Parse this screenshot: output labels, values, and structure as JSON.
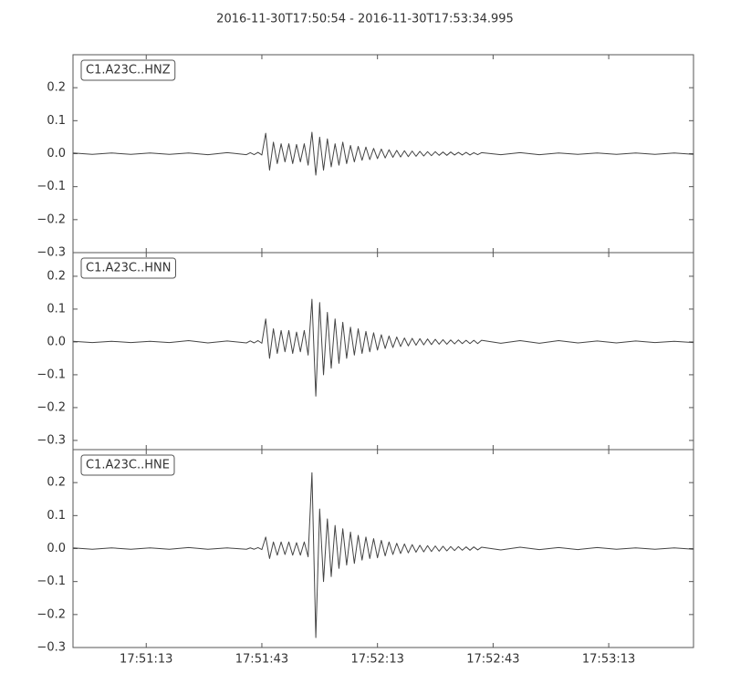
{
  "chart_data": [
    {
      "type": "line",
      "title": "2016-11-30T17:50:54  -  2016-11-30T17:53:34.995",
      "x": [
        64254,
        64259,
        64264,
        64269,
        64274,
        64279,
        64284,
        64289,
        64294,
        64299,
        64300,
        64301,
        64302,
        64303,
        64304,
        64305,
        64306,
        64307,
        64308,
        64309,
        64310,
        64311,
        64312,
        64313,
        64314,
        64315,
        64316,
        64317,
        64318,
        64319,
        64320,
        64321,
        64322,
        64323,
        64324,
        64325,
        64326,
        64327,
        64328,
        64329,
        64330,
        64331,
        64332,
        64333,
        64334,
        64335,
        64336,
        64337,
        64338,
        64339,
        64340,
        64341,
        64342,
        64343,
        64344,
        64345,
        64346,
        64347,
        64348,
        64349,
        64350,
        64351,
        64352,
        64353,
        64354,
        64355,
        64356,
        64357,
        64358,
        64359,
        64360,
        64365,
        64370,
        64375,
        64380,
        64385,
        64390,
        64395,
        64400,
        64405,
        64410,
        64414.995
      ],
      "series": [
        {
          "name": "C1.A23C..HNZ",
          "color": "#444444",
          "values": [
            0.002,
            -0.002,
            0.002,
            -0.002,
            0.002,
            -0.002,
            0.002,
            -0.003,
            0.003,
            -0.003,
            0.003,
            -0.003,
            0.004,
            -0.004,
            0.062,
            -0.05,
            0.035,
            -0.03,
            0.03,
            -0.025,
            0.03,
            -0.03,
            0.028,
            -0.025,
            0.03,
            -0.035,
            0.065,
            -0.065,
            0.05,
            -0.05,
            0.045,
            -0.04,
            0.03,
            -0.035,
            0.035,
            -0.03,
            0.025,
            -0.025,
            0.022,
            -0.02,
            0.02,
            -0.018,
            0.016,
            -0.015,
            0.014,
            -0.013,
            0.012,
            -0.011,
            0.01,
            -0.01,
            0.009,
            -0.009,
            0.008,
            -0.008,
            0.007,
            -0.007,
            0.006,
            -0.006,
            0.006,
            -0.005,
            0.005,
            -0.005,
            0.005,
            -0.004,
            0.004,
            -0.004,
            0.004,
            -0.004,
            0.003,
            -0.003,
            0.003,
            -0.003,
            0.003,
            -0.003,
            0.002,
            -0.002,
            0.002,
            -0.002,
            0.002,
            -0.002,
            0.002,
            -0.002
          ]
        }
      ],
      "xlim": [
        64254,
        64414.995
      ],
      "ylim": [
        -0.3,
        0.3
      ],
      "yticks": [
        {
          "value": -0.3,
          "label": "−0.3"
        },
        {
          "value": -0.2,
          "label": "−0.2"
        },
        {
          "value": -0.1,
          "label": "−0.1"
        },
        {
          "value": 0.0,
          "label": "0.0"
        },
        0.1,
        0.2
      ]
    },
    {
      "type": "line",
      "x": [
        64254,
        64259,
        64264,
        64269,
        64274,
        64279,
        64284,
        64289,
        64294,
        64299,
        64300,
        64301,
        64302,
        64303,
        64304,
        64305,
        64306,
        64307,
        64308,
        64309,
        64310,
        64311,
        64312,
        64313,
        64314,
        64315,
        64316,
        64317,
        64318,
        64319,
        64320,
        64321,
        64322,
        64323,
        64324,
        64325,
        64326,
        64327,
        64328,
        64329,
        64330,
        64331,
        64332,
        64333,
        64334,
        64335,
        64336,
        64337,
        64338,
        64339,
        64340,
        64341,
        64342,
        64343,
        64344,
        64345,
        64346,
        64347,
        64348,
        64349,
        64350,
        64351,
        64352,
        64353,
        64354,
        64355,
        64356,
        64357,
        64358,
        64359,
        64360,
        64365,
        64370,
        64375,
        64380,
        64385,
        64390,
        64395,
        64400,
        64405,
        64410,
        64414.995
      ],
      "series": [
        {
          "name": "C1.A23C..HNN",
          "color": "#444444",
          "values": [
            0.002,
            -0.002,
            0.002,
            -0.002,
            0.002,
            -0.002,
            0.004,
            -0.003,
            0.003,
            -0.003,
            0.003,
            -0.003,
            0.004,
            -0.004,
            0.07,
            -0.05,
            0.04,
            -0.035,
            0.035,
            -0.03,
            0.035,
            -0.035,
            0.03,
            -0.03,
            0.035,
            -0.04,
            0.13,
            -0.165,
            0.12,
            -0.1,
            0.09,
            -0.08,
            0.07,
            -0.065,
            0.06,
            -0.05,
            0.045,
            -0.04,
            0.04,
            -0.035,
            0.032,
            -0.03,
            0.028,
            -0.025,
            0.022,
            -0.02,
            0.018,
            -0.017,
            0.015,
            -0.014,
            0.012,
            -0.012,
            0.011,
            -0.01,
            0.01,
            -0.009,
            0.009,
            -0.008,
            0.008,
            -0.007,
            0.007,
            -0.007,
            0.006,
            -0.006,
            0.006,
            -0.005,
            0.005,
            -0.005,
            0.005,
            -0.005,
            0.005,
            -0.004,
            0.004,
            -0.004,
            0.004,
            -0.003,
            0.003,
            -0.003,
            0.003,
            -0.002,
            0.002,
            -0.002
          ]
        }
      ],
      "xlim": [
        64254,
        64414.995
      ],
      "ylim": [
        -0.328,
        0.272
      ],
      "yticks": [
        {
          "value": -0.3,
          "label": "−0.3"
        },
        {
          "value": -0.2,
          "label": "−0.2"
        },
        {
          "value": -0.1,
          "label": "−0.1"
        },
        {
          "value": 0.0,
          "label": "0.0"
        },
        0.1,
        0.2
      ]
    },
    {
      "type": "line",
      "x": [
        64254,
        64259,
        64264,
        64269,
        64274,
        64279,
        64284,
        64289,
        64294,
        64299,
        64300,
        64301,
        64302,
        64303,
        64304,
        64305,
        64306,
        64307,
        64308,
        64309,
        64310,
        64311,
        64312,
        64313,
        64314,
        64315,
        64316,
        64317,
        64318,
        64319,
        64320,
        64321,
        64322,
        64323,
        64324,
        64325,
        64326,
        64327,
        64328,
        64329,
        64330,
        64331,
        64332,
        64333,
        64334,
        64335,
        64336,
        64337,
        64338,
        64339,
        64340,
        64341,
        64342,
        64343,
        64344,
        64345,
        64346,
        64347,
        64348,
        64349,
        64350,
        64351,
        64352,
        64353,
        64354,
        64355,
        64356,
        64357,
        64358,
        64359,
        64360,
        64365,
        64370,
        64375,
        64380,
        64385,
        64390,
        64395,
        64400,
        64405,
        64410,
        64414.995
      ],
      "series": [
        {
          "name": "C1.A23C..HNE",
          "color": "#444444",
          "values": [
            0.002,
            -0.002,
            0.002,
            -0.002,
            0.002,
            -0.002,
            0.003,
            -0.002,
            0.002,
            -0.002,
            0.002,
            -0.002,
            0.003,
            -0.003,
            0.035,
            -0.03,
            0.02,
            -0.02,
            0.02,
            -0.018,
            0.02,
            -0.02,
            0.018,
            -0.02,
            0.02,
            -0.025,
            0.23,
            -0.27,
            0.12,
            -0.1,
            0.09,
            -0.085,
            0.07,
            -0.06,
            0.06,
            -0.05,
            0.05,
            -0.045,
            0.04,
            -0.035,
            0.035,
            -0.03,
            0.03,
            -0.028,
            0.025,
            -0.022,
            0.02,
            -0.018,
            0.016,
            -0.015,
            0.014,
            -0.013,
            0.012,
            -0.011,
            0.01,
            -0.01,
            0.009,
            -0.009,
            0.008,
            -0.008,
            0.007,
            -0.007,
            0.006,
            -0.006,
            0.006,
            -0.005,
            0.005,
            -0.005,
            0.005,
            -0.004,
            0.004,
            -0.004,
            0.004,
            -0.003,
            0.003,
            -0.003,
            0.003,
            -0.002,
            0.002,
            -0.002,
            0.002,
            -0.002
          ]
        }
      ],
      "xlim": [
        64254,
        64414.995
      ],
      "ylim": [
        -0.3,
        0.3
      ],
      "yticks": [
        {
          "value": -0.3,
          "label": "−0.3"
        },
        {
          "value": -0.2,
          "label": "−0.2"
        },
        {
          "value": -0.1,
          "label": "−0.1"
        },
        {
          "value": 0.0,
          "label": "0.0"
        },
        0.1,
        0.2
      ],
      "xticks": [
        {
          "value": 64273,
          "label": "17:51:13"
        },
        {
          "value": 64303,
          "label": "17:51:43"
        },
        {
          "value": 64333,
          "label": "17:52:13"
        },
        {
          "value": 64363,
          "label": "17:52:43"
        },
        {
          "value": 64393,
          "label": "17:53:13"
        }
      ]
    }
  ]
}
